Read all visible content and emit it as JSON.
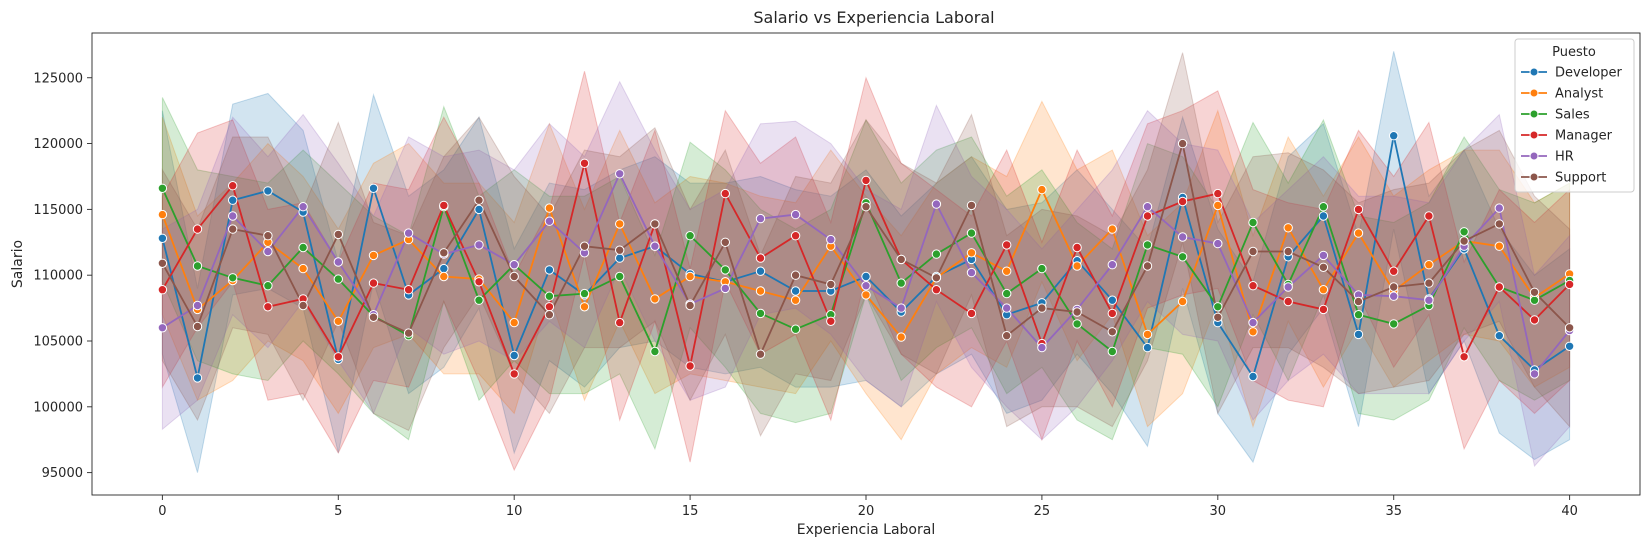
{
  "chart_data": {
    "type": "line",
    "title": "Salario vs Experiencia Laboral",
    "xlabel": "Experiencia Laboral",
    "ylabel": "Salario",
    "xlim": [
      -2,
      42
    ],
    "ylim": [
      93300,
      128400
    ],
    "xticks": [
      0,
      5,
      10,
      15,
      20,
      25,
      30,
      35,
      40
    ],
    "yticks": [
      95000,
      100000,
      105000,
      110000,
      115000,
      120000,
      125000
    ],
    "legend": {
      "title": "Puesto",
      "placement": "top-right"
    },
    "x": [
      0,
      1,
      2,
      3,
      4,
      5,
      6,
      7,
      8,
      9,
      10,
      11,
      12,
      13,
      14,
      15,
      16,
      17,
      18,
      19,
      20,
      21,
      22,
      23,
      24,
      25,
      26,
      27,
      28,
      29,
      30,
      31,
      32,
      33,
      34,
      35,
      36,
      37,
      38,
      39,
      40
    ],
    "series": [
      {
        "name": "Developer",
        "color": "#1f77b4",
        "values": [
          112800,
          102200,
          115700,
          116400,
          114800,
          103600,
          116600,
          108500,
          110500,
          115000,
          103900,
          110400,
          108500,
          111300,
          112200,
          110100,
          109500,
          110300,
          108800,
          108800,
          109900,
          107200,
          109900,
          111200,
          107000,
          107900,
          111100,
          108100,
          104500,
          115900,
          106400,
          102300,
          111400,
          114500,
          105500,
          120600,
          108200,
          112000,
          105400,
          102800,
          104600
        ],
        "upper": [
          122500,
          109000,
          123000,
          123800,
          121000,
          111000,
          123700,
          116000,
          118000,
          122000,
          112000,
          117000,
          116500,
          118000,
          119000,
          117000,
          117000,
          117500,
          116500,
          116000,
          118000,
          114500,
          117000,
          119000,
          115000,
          115500,
          118000,
          115000,
          112000,
          122000,
          113500,
          109500,
          119000,
          121500,
          113000,
          127000,
          116000,
          119500,
          113500,
          110000,
          112000
        ],
        "lower": [
          104000,
          95000,
          108500,
          109000,
          107500,
          96500,
          109500,
          101000,
          103000,
          107500,
          96500,
          103500,
          101500,
          104500,
          105000,
          103000,
          102500,
          103000,
          101500,
          101500,
          102000,
          100000,
          102500,
          104000,
          99500,
          100500,
          104000,
          101000,
          97000,
          109000,
          99500,
          95800,
          104000,
          107500,
          98500,
          113500,
          101000,
          105000,
          98000,
          96000,
          97500
        ]
      },
      {
        "name": "Analyst",
        "color": "#ff7f0e",
        "values": [
          114600,
          107400,
          109600,
          112500,
          110500,
          106500,
          111500,
          112700,
          109900,
          109700,
          106400,
          115100,
          107600,
          113900,
          108200,
          109900,
          109500,
          108800,
          108100,
          112200,
          108500,
          105300,
          109800,
          111700,
          110300,
          116500,
          110700,
          113500,
          105500,
          108000,
          115300,
          105700,
          113600,
          108900,
          113200,
          108800,
          110800,
          112600,
          112200,
          108300,
          110100
        ],
        "upper": [
          122000,
          114500,
          117000,
          120000,
          117500,
          113500,
          118500,
          120000,
          117000,
          117000,
          114000,
          121500,
          115000,
          121000,
          115500,
          117500,
          117000,
          116000,
          115500,
          119500,
          116000,
          113000,
          117000,
          119000,
          117500,
          123200,
          118000,
          119500,
          113000,
          115500,
          122500,
          113000,
          120500,
          116000,
          120500,
          116000,
          118000,
          119500,
          119500,
          115500,
          117000
        ],
        "lower": [
          107000,
          100500,
          102000,
          105000,
          103500,
          99500,
          104500,
          105500,
          102500,
          102500,
          99500,
          108500,
          100500,
          106500,
          101000,
          102500,
          102000,
          101500,
          101000,
          105000,
          101000,
          97500,
          102500,
          104500,
          103000,
          109500,
          103500,
          107000,
          98500,
          101000,
          108000,
          98500,
          106500,
          101500,
          106000,
          101500,
          103500,
          105500,
          105000,
          101500,
          103000
        ]
      },
      {
        "name": "Sales",
        "color": "#2ca02c",
        "values": [
          116600,
          110700,
          109800,
          109200,
          112100,
          109700,
          106900,
          105400,
          115200,
          108100,
          110800,
          108400,
          108600,
          109900,
          104200,
          113000,
          110400,
          107100,
          105900,
          107000,
          115500,
          109400,
          111600,
          113200,
          108600,
          110500,
          106300,
          104200,
          112300,
          111400,
          107600,
          114000,
          109300,
          115200,
          107000,
          106300,
          107700,
          113300,
          109100,
          108100,
          109600
        ],
        "upper": [
          123500,
          118000,
          117500,
          117000,
          119500,
          117000,
          114500,
          113000,
          122800,
          116000,
          118000,
          116000,
          116000,
          117500,
          111500,
          120100,
          118000,
          115000,
          113500,
          115000,
          121800,
          117000,
          119500,
          120500,
          116000,
          118000,
          114000,
          112000,
          120000,
          119000,
          115000,
          121600,
          117000,
          121800,
          114500,
          114000,
          115500,
          120500,
          116500,
          115500,
          117000
        ],
        "lower": [
          109500,
          103500,
          102500,
          102000,
          105000,
          102500,
          99500,
          97500,
          108000,
          100500,
          103500,
          101000,
          101000,
          102500,
          96800,
          106000,
          103000,
          99500,
          98800,
          99500,
          108500,
          102000,
          104500,
          106000,
          101000,
          103000,
          99000,
          97500,
          104500,
          104000,
          100000,
          107000,
          102000,
          108500,
          99500,
          99000,
          100500,
          106000,
          102000,
          100500,
          102000
        ]
      },
      {
        "name": "Manager",
        "color": "#d62728",
        "values": [
          108900,
          113500,
          116800,
          107600,
          108200,
          103800,
          109400,
          108900,
          115300,
          109500,
          102500,
          107600,
          118500,
          106400,
          113900,
          103100,
          116200,
          111300,
          113000,
          106500,
          117200,
          111200,
          108900,
          107100,
          112300,
          104800,
          112100,
          107100,
          114500,
          115600,
          116200,
          109200,
          108000,
          107400,
          115000,
          110300,
          114500,
          103800,
          109100,
          106600,
          109300
        ],
        "upper": [
          116000,
          120800,
          121800,
          115000,
          115500,
          111000,
          117000,
          116500,
          122000,
          117000,
          110000,
          115000,
          125500,
          114000,
          121000,
          110500,
          122500,
          118500,
          120500,
          114000,
          125000,
          118500,
          116500,
          114500,
          119500,
          112500,
          119500,
          114500,
          121500,
          122500,
          124000,
          116500,
          115500,
          115000,
          121000,
          117500,
          121600,
          111000,
          116500,
          114000,
          116500
        ],
        "lower": [
          101500,
          106000,
          109500,
          100500,
          101000,
          96500,
          102000,
          101500,
          108000,
          102000,
          95200,
          100500,
          111500,
          99000,
          106500,
          95800,
          109500,
          104000,
          105500,
          99000,
          110000,
          104000,
          101500,
          100000,
          105000,
          97500,
          105000,
          100000,
          107500,
          108500,
          109000,
          102000,
          100500,
          100000,
          108500,
          103000,
          107000,
          96800,
          102000,
          99500,
          102000
        ]
      },
      {
        "name": "HR",
        "color": "#9467bd",
        "values": [
          106000,
          107700,
          114500,
          111800,
          115200,
          111000,
          107000,
          113200,
          111600,
          112300,
          110800,
          114100,
          111700,
          117700,
          112200,
          107800,
          109000,
          114300,
          114600,
          112700,
          109200,
          107500,
          115400,
          110200,
          107500,
          104500,
          107400,
          110800,
          115200,
          112900,
          112400,
          106400,
          109100,
          111500,
          108500,
          108400,
          108100,
          112200,
          115100,
          102500,
          105800
        ],
        "upper": [
          113500,
          115000,
          122000,
          119000,
          122200,
          118500,
          114500,
          120500,
          119000,
          119500,
          118000,
          121500,
          119000,
          124700,
          119500,
          115000,
          116500,
          121500,
          121700,
          120000,
          116500,
          115000,
          122900,
          117500,
          115000,
          112000,
          115000,
          118000,
          122500,
          120000,
          119500,
          114000,
          116500,
          119000,
          116000,
          116000,
          115500,
          119500,
          122200,
          110000,
          113000
        ],
        "lower": [
          98300,
          100500,
          107000,
          104500,
          108000,
          103500,
          99500,
          106000,
          104000,
          105000,
          103500,
          106500,
          104500,
          110500,
          105000,
          100500,
          101500,
          107000,
          107500,
          105500,
          102000,
          100000,
          108000,
          103000,
          100000,
          97500,
          100000,
          103500,
          108000,
          105500,
          105000,
          99000,
          102000,
          104000,
          101000,
          101000,
          101000,
          105000,
          108000,
          95500,
          98500
        ]
      },
      {
        "name": "Support",
        "color": "#8c564b",
        "values": [
          110900,
          106100,
          113500,
          113000,
          107700,
          113100,
          106800,
          105600,
          111700,
          115700,
          109900,
          107000,
          112200,
          111900,
          113900,
          107700,
          112500,
          104000,
          110000,
          109300,
          115200,
          111200,
          109800,
          115300,
          105400,
          107500,
          107200,
          105700,
          110700,
          120000,
          106800,
          111800,
          111800,
          110600,
          108000,
          109100,
          109400,
          112600,
          113900,
          108700,
          106000
        ],
        "upper": [
          118000,
          113500,
          120500,
          120500,
          115000,
          121600,
          114000,
          113000,
          119000,
          122000,
          117500,
          114500,
          119500,
          119000,
          121200,
          115000,
          119500,
          111500,
          117500,
          117000,
          121800,
          118500,
          117000,
          122200,
          113000,
          115000,
          114500,
          113000,
          118000,
          126900,
          114000,
          119000,
          119300,
          118000,
          115500,
          116500,
          117000,
          119500,
          121000,
          116000,
          113500
        ],
        "lower": [
          103500,
          99000,
          106000,
          105500,
          100500,
          106500,
          99500,
          98200,
          104500,
          108500,
          102500,
          99500,
          104500,
          104500,
          106500,
          100500,
          105500,
          97800,
          102500,
          102000,
          108500,
          104000,
          102500,
          108500,
          98500,
          100000,
          100000,
          98500,
          103500,
          112500,
          99500,
          104500,
          104500,
          103000,
          101000,
          101500,
          102000,
          105500,
          106500,
          101500,
          98500
        ]
      }
    ]
  }
}
